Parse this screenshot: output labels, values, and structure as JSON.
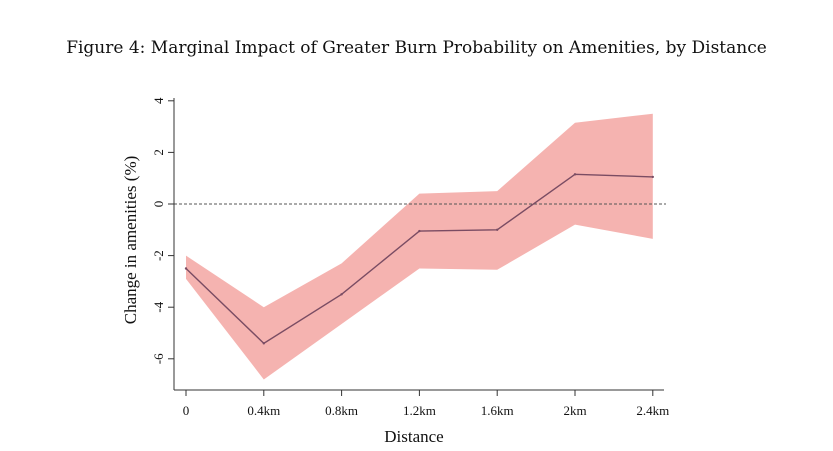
{
  "figure": {
    "title": "Figure 4: Marginal Impact of Greater Burn Probability on Amenities, by Distance"
  },
  "chart_data": {
    "type": "line",
    "categories": [
      "0",
      "0.4km",
      "0.8km",
      "1.2km",
      "1.6km",
      "2km",
      "2.4km"
    ],
    "series": [
      {
        "values": [
          -2.5,
          -5.4,
          -3.5,
          -1.05,
          -1.0,
          1.15,
          1.05
        ],
        "ci_lower": [
          -2.9,
          -6.8,
          -4.65,
          -2.5,
          -2.55,
          -0.8,
          -1.35
        ],
        "ci_upper": [
          -2.0,
          -4.0,
          -2.3,
          0.4,
          0.5,
          3.15,
          3.5
        ],
        "line_color": "#7a4c63",
        "band_color": "#f5b3b0"
      }
    ],
    "reference_line": {
      "y": 0,
      "style": "dashed"
    },
    "xlabel": "Distance",
    "ylabel": "Change in amenities (%)",
    "yticks": [
      "4",
      "2",
      "0",
      "-2",
      "-4",
      "-6"
    ],
    "ylim": [
      -7.3,
      4.2
    ],
    "grid": false
  }
}
